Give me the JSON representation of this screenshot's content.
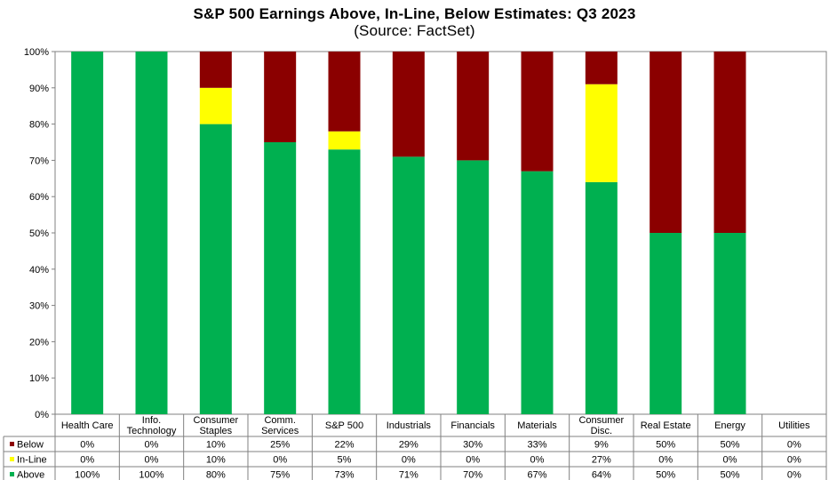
{
  "chart_data": {
    "type": "bar",
    "stacked": true,
    "title": "S&P 500 Earnings Above, In-Line, Below Estimates: Q3 2023",
    "subtitle": "(Source: FactSet)",
    "categories": [
      [
        "Health Care"
      ],
      [
        "Info.",
        "Technology"
      ],
      [
        "Consumer",
        "Staples"
      ],
      [
        "Comm.",
        "Services"
      ],
      [
        "S&P 500"
      ],
      [
        "Industrials"
      ],
      [
        "Financials"
      ],
      [
        "Materials"
      ],
      [
        "Consumer",
        "Disc."
      ],
      [
        "Real Estate"
      ],
      [
        "Energy"
      ],
      [
        "Utilities"
      ]
    ],
    "series": [
      {
        "name": "Above",
        "color": "#00b050",
        "values": [
          100,
          100,
          80,
          75,
          73,
          71,
          70,
          67,
          64,
          50,
          50,
          0
        ],
        "labels": [
          "100%",
          "100%",
          "80%",
          "75%",
          "73%",
          "71%",
          "70%",
          "67%",
          "64%",
          "50%",
          "50%",
          "0%"
        ]
      },
      {
        "name": "In-Line",
        "color": "#ffff00",
        "values": [
          0,
          0,
          10,
          0,
          5,
          0,
          0,
          0,
          27,
          0,
          0,
          0
        ],
        "labels": [
          "0%",
          "0%",
          "10%",
          "0%",
          "5%",
          "0%",
          "0%",
          "0%",
          "27%",
          "0%",
          "0%",
          "0%"
        ]
      },
      {
        "name": "Below",
        "color": "#8b0000",
        "values": [
          0,
          0,
          10,
          25,
          22,
          29,
          30,
          33,
          9,
          50,
          50,
          0
        ],
        "labels": [
          "0%",
          "0%",
          "10%",
          "25%",
          "22%",
          "29%",
          "30%",
          "33%",
          "9%",
          "50%",
          "50%",
          "0%"
        ]
      }
    ],
    "table_row_order": [
      "Below",
      "In-Line",
      "Above"
    ],
    "ylim": [
      0,
      100
    ],
    "yticks": [
      "0%",
      "10%",
      "20%",
      "30%",
      "40%",
      "50%",
      "60%",
      "70%",
      "80%",
      "90%",
      "100%"
    ],
    "grid": false,
    "legend": "data-table-left"
  }
}
